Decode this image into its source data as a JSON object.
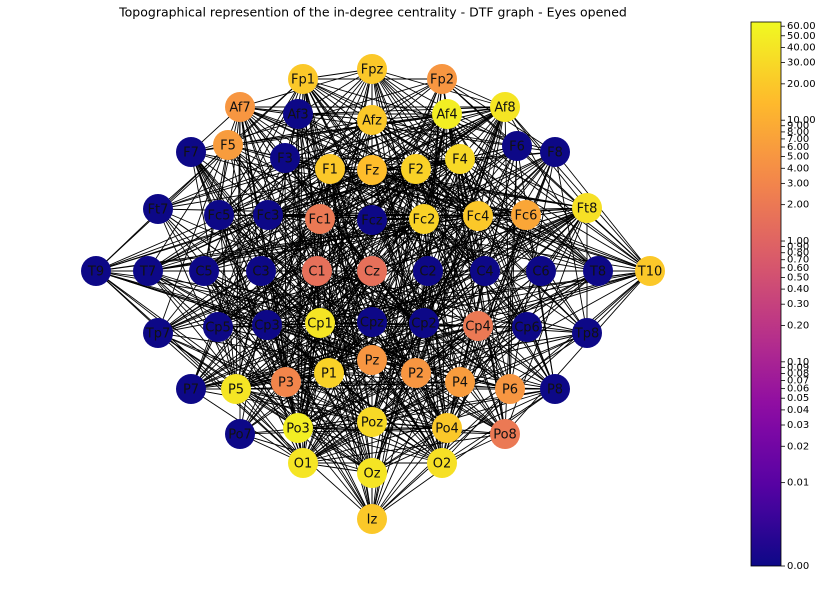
{
  "chart_data": {
    "type": "network",
    "title": "Topographical represention of the in-degree centrality - DTF graph - Eyes opened",
    "categories": [
      "Fpz",
      "Fp1",
      "Fp2",
      "Af7",
      "Af3",
      "Afz",
      "Af4",
      "Af8",
      "F7",
      "F5",
      "F3",
      "F1",
      "Fz",
      "F2",
      "F4",
      "F6",
      "F8",
      "Ft7",
      "Fc5",
      "Fc3",
      "Fc1",
      "Fcz",
      "Fc2",
      "Fc4",
      "Fc6",
      "Ft8",
      "T9",
      "T7",
      "C5",
      "C3",
      "C1",
      "Cz",
      "C2",
      "C4",
      "C6",
      "T8",
      "T10",
      "Tp7",
      "Cp5",
      "Cp3",
      "Cp1",
      "Cpz",
      "Cp2",
      "Cp4",
      "Cp6",
      "Tp8",
      "P7",
      "P5",
      "P3",
      "P1",
      "Pz",
      "P2",
      "P4",
      "P6",
      "P8",
      "Po7",
      "Po3",
      "Poz",
      "Po4",
      "Po8",
      "O1",
      "Oz",
      "O2",
      "Iz"
    ],
    "values": [
      20,
      20,
      5,
      5,
      0,
      20,
      50,
      40,
      0,
      6,
      0,
      20,
      15,
      25,
      30,
      0,
      0,
      0,
      0,
      0,
      2,
      0,
      25,
      20,
      8,
      35,
      0,
      0,
      0,
      0,
      1.5,
      1.5,
      0,
      0,
      0,
      0,
      20,
      0,
      0,
      0,
      40,
      0,
      0,
      2,
      0,
      0,
      0,
      40,
      3,
      25,
      5,
      5,
      6,
      5,
      0,
      0,
      50,
      30,
      20,
      2,
      40,
      40,
      35,
      20
    ],
    "colormap": "plasma",
    "scale": "symlog",
    "linthresh": 0.01,
    "linscale": 0.69,
    "clim": [
      0,
      65
    ],
    "cticks": [
      {
        "value": 0,
        "label": "0.00"
      },
      {
        "value": 0.01,
        "label": "0.01"
      },
      {
        "value": 0.02,
        "label": "0.02"
      },
      {
        "value": 0.03,
        "label": "0.03"
      },
      {
        "value": 0.04,
        "label": "0.04"
      },
      {
        "value": 0.05,
        "label": "0.05"
      },
      {
        "value": 0.06,
        "label": "0.06"
      },
      {
        "value": 0.07,
        "label": "0.07"
      },
      {
        "value": 0.08,
        "label": "0.08"
      },
      {
        "value": 0.09,
        "label": "0.09"
      },
      {
        "value": 0.1,
        "label": "0.10"
      },
      {
        "value": 0.2,
        "label": "0.20"
      },
      {
        "value": 0.3,
        "label": "0.30"
      },
      {
        "value": 0.4,
        "label": "0.40"
      },
      {
        "value": 0.5,
        "label": "0.50"
      },
      {
        "value": 0.6,
        "label": "0.60"
      },
      {
        "value": 0.7,
        "label": "0.70"
      },
      {
        "value": 0.8,
        "label": "0.80"
      },
      {
        "value": 0.9,
        "label": "0.90"
      },
      {
        "value": 1,
        "label": "1.00"
      },
      {
        "value": 2,
        "label": "2.00"
      },
      {
        "value": 3,
        "label": "3.00"
      },
      {
        "value": 4,
        "label": "4.00"
      },
      {
        "value": 5,
        "label": "5.00"
      },
      {
        "value": 6,
        "label": "6.00"
      },
      {
        "value": 7,
        "label": "7.00"
      },
      {
        "value": 8,
        "label": "8.00"
      },
      {
        "value": 9,
        "label": "9.00"
      },
      {
        "value": 10,
        "label": "10.00"
      },
      {
        "value": 20,
        "label": "20.00"
      },
      {
        "value": 30,
        "label": "30.00"
      },
      {
        "value": 40,
        "label": "40.00"
      },
      {
        "value": 50,
        "label": "50.00"
      },
      {
        "value": 60,
        "label": "60.00"
      }
    ]
  }
}
